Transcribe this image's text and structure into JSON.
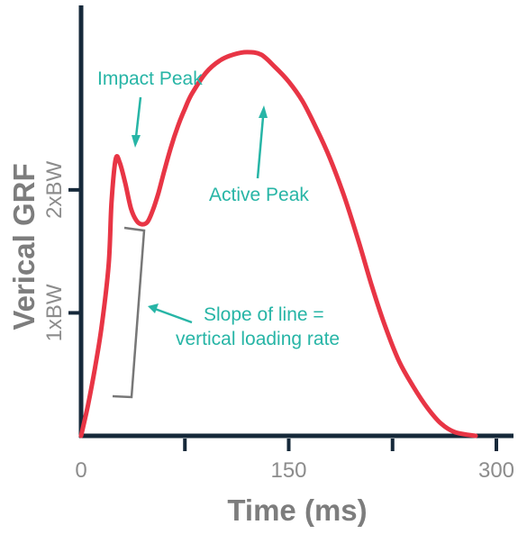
{
  "colors": {
    "curve": "#e83545",
    "axis": "#16293a",
    "annotation": "#27b5a6",
    "bracket": "#777777",
    "label": "#8c8c8c"
  },
  "chart_data": {
    "type": "line",
    "xlabel": "Time (ms)",
    "ylabel": "Verical GRF",
    "xlim": [
      0,
      300
    ],
    "ylim": [
      0,
      3.5
    ],
    "x_ticks": [
      0,
      150,
      300
    ],
    "x_minor_ticks": [
      75,
      225
    ],
    "y_ticks": [
      {
        "value": 1,
        "label": "1xBW"
      },
      {
        "value": 2,
        "label": "2xBW"
      }
    ],
    "series": [
      {
        "x": [
          0,
          5,
          10,
          15,
          20,
          22,
          25,
          28,
          32,
          36,
          40,
          44,
          48,
          52,
          56,
          60,
          65,
          70,
          75,
          80,
          90,
          100,
          110,
          120,
          130,
          140,
          150,
          160,
          170,
          180,
          190,
          200,
          210,
          220,
          230,
          240,
          250,
          260,
          270,
          285
        ],
        "y": [
          0,
          0.25,
          0.55,
          0.9,
          1.4,
          1.9,
          2.25,
          2.22,
          2.05,
          1.85,
          1.75,
          1.72,
          1.74,
          1.84,
          1.98,
          2.15,
          2.35,
          2.52,
          2.66,
          2.78,
          2.95,
          3.05,
          3.1,
          3.12,
          3.1,
          3.0,
          2.88,
          2.72,
          2.5,
          2.25,
          1.95,
          1.6,
          1.22,
          0.88,
          0.6,
          0.4,
          0.23,
          0.1,
          0.03,
          0
        ]
      }
    ],
    "annotations": [
      {
        "text": "Impact Peak",
        "x": 25,
        "y": 2.25
      },
      {
        "text": "Active Peak",
        "x": 130,
        "y": 3.1
      },
      {
        "text": "Slope of line =",
        "text2": "vertical loading rate"
      }
    ]
  }
}
